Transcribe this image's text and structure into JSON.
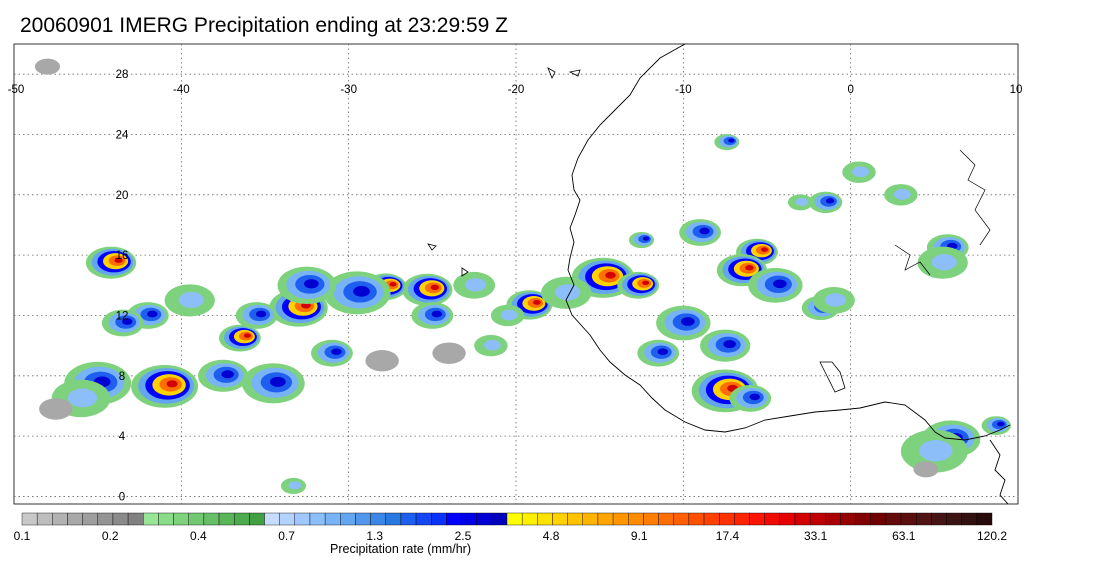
{
  "title": "20060901 IMERG Precipitation ending at 23:29:59 Z",
  "map": {
    "lon_labels": [
      "-50",
      "-40",
      "-30",
      "-20",
      "-10",
      "0",
      "10"
    ],
    "lat_labels": [
      "28",
      "24",
      "20",
      "16",
      "12",
      "8",
      "4",
      "0"
    ],
    "lon_range": [
      -50,
      10
    ],
    "lat_range": [
      -0.5,
      30
    ],
    "grid": "dotted",
    "coastline_color": "#000000"
  },
  "colorbar": {
    "title": "Precipitation rate (mm/hr)",
    "labels": [
      "0.1",
      "0.2",
      "0.4",
      "0.7",
      "1.3",
      "2.5",
      "4.8",
      "9.1",
      "17.4",
      "33.1",
      "63.1",
      "120.2"
    ],
    "colors": [
      "#c8c8c8",
      "#bdbdbd",
      "#b2b2b2",
      "#a8a8a8",
      "#9e9e9e",
      "#949494",
      "#8a8a8a",
      "#808080",
      "#96e696",
      "#8adc8a",
      "#7ed27e",
      "#72c872",
      "#66be66",
      "#5ab45a",
      "#4eaa4e",
      "#42a042",
      "#c8dcff",
      "#b4d2ff",
      "#a0c8ff",
      "#8cbefa",
      "#78b4f5",
      "#64a5f0",
      "#5096eb",
      "#3c87e6",
      "#2878e1",
      "#1e5ff0",
      "#1446f5",
      "#0a32fa",
      "#0000ff",
      "#0000e6",
      "#0000d2",
      "#0000be",
      "#ffff00",
      "#fff000",
      "#ffe100",
      "#ffd200",
      "#ffc300",
      "#ffb400",
      "#ffa500",
      "#ff9600",
      "#ff8c00",
      "#ff7d00",
      "#ff6e00",
      "#ff5f00",
      "#ff5000",
      "#ff4100",
      "#ff3200",
      "#ff2300",
      "#ff1400",
      "#f00a00",
      "#e60000",
      "#d20000",
      "#be0000",
      "#aa0000",
      "#960000",
      "#820000",
      "#6e0000",
      "#640a0a",
      "#5a0f0f",
      "#501414",
      "#461414",
      "#3c1414",
      "#321010",
      "#280a0a"
    ]
  },
  "precip_cells": [
    {
      "lon": -44.2,
      "lat": 15.5,
      "r": 1.2,
      "level": "heavy"
    },
    {
      "lon": -33.0,
      "lat": 12.5,
      "r": 1.4,
      "level": "heavy"
    },
    {
      "lon": -25.3,
      "lat": 13.7,
      "r": 1.2,
      "level": "heavy"
    },
    {
      "lon": -27.8,
      "lat": 13.9,
      "r": 1.0,
      "level": "heavy"
    },
    {
      "lon": -19.2,
      "lat": 12.7,
      "r": 1.1,
      "level": "heavy"
    },
    {
      "lon": -14.8,
      "lat": 14.5,
      "r": 1.5,
      "level": "heavy"
    },
    {
      "lon": -12.7,
      "lat": 14.0,
      "r": 1.0,
      "level": "heavy"
    },
    {
      "lon": -7.5,
      "lat": 7.0,
      "r": 1.6,
      "level": "heavy"
    },
    {
      "lon": -5.6,
      "lat": 16.2,
      "r": 1.0,
      "level": "heavy"
    },
    {
      "lon": -6.5,
      "lat": 15.0,
      "r": 1.2,
      "level": "heavy"
    },
    {
      "lon": -41.0,
      "lat": 7.3,
      "r": 1.6,
      "level": "heavy"
    },
    {
      "lon": -36.5,
      "lat": 10.5,
      "r": 1.0,
      "level": "heavy"
    },
    {
      "lon": -37.5,
      "lat": 8.0,
      "r": 1.2,
      "level": "moderate"
    },
    {
      "lon": -45.0,
      "lat": 7.5,
      "r": 1.6,
      "level": "moderate"
    },
    {
      "lon": -31.0,
      "lat": 9.5,
      "r": 1.0,
      "level": "moderate"
    },
    {
      "lon": -34.5,
      "lat": 7.5,
      "r": 1.5,
      "level": "moderate"
    },
    {
      "lon": -29.5,
      "lat": 13.5,
      "r": 1.6,
      "level": "moderate"
    },
    {
      "lon": -32.5,
      "lat": 14.0,
      "r": 1.4,
      "level": "moderate"
    },
    {
      "lon": -35.5,
      "lat": 12.0,
      "r": 1.0,
      "level": "moderate"
    },
    {
      "lon": -42.0,
      "lat": 12.0,
      "r": 1.0,
      "level": "moderate"
    },
    {
      "lon": -43.5,
      "lat": 11.5,
      "r": 1.0,
      "level": "moderate"
    },
    {
      "lon": -25.0,
      "lat": 12.0,
      "r": 1.0,
      "level": "moderate"
    },
    {
      "lon": -10.0,
      "lat": 11.5,
      "r": 1.3,
      "level": "moderate"
    },
    {
      "lon": -11.5,
      "lat": 9.5,
      "r": 1.0,
      "level": "moderate"
    },
    {
      "lon": -7.5,
      "lat": 10.0,
      "r": 1.2,
      "level": "moderate"
    },
    {
      "lon": -6.0,
      "lat": 6.5,
      "r": 1.0,
      "level": "moderate"
    },
    {
      "lon": -4.5,
      "lat": 14.0,
      "r": 1.3,
      "level": "moderate"
    },
    {
      "lon": -1.5,
      "lat": 19.5,
      "r": 0.8,
      "level": "moderate"
    },
    {
      "lon": 5.8,
      "lat": 16.5,
      "r": 1.0,
      "level": "moderate"
    },
    {
      "lon": -1.8,
      "lat": 12.5,
      "r": 0.9,
      "level": "moderate"
    },
    {
      "lon": 6.0,
      "lat": 3.8,
      "r": 1.4,
      "level": "moderate"
    },
    {
      "lon": 8.7,
      "lat": 4.7,
      "r": 0.7,
      "level": "moderate"
    },
    {
      "lon": -7.4,
      "lat": 23.5,
      "r": 0.6,
      "level": "moderate"
    },
    {
      "lon": -12.5,
      "lat": 17.0,
      "r": 0.6,
      "level": "moderate"
    },
    {
      "lon": -9.0,
      "lat": 17.5,
      "r": 1.0,
      "level": "moderate"
    },
    {
      "lon": -20.5,
      "lat": 12.0,
      "r": 0.8,
      "level": "light"
    },
    {
      "lon": -17.0,
      "lat": 13.5,
      "r": 1.2,
      "level": "light"
    },
    {
      "lon": -46.0,
      "lat": 6.5,
      "r": 1.4,
      "level": "light"
    },
    {
      "lon": -39.5,
      "lat": 13.0,
      "r": 1.2,
      "level": "light"
    },
    {
      "lon": -22.5,
      "lat": 14.0,
      "r": 1.0,
      "level": "light"
    },
    {
      "lon": -21.5,
      "lat": 10.0,
      "r": 0.8,
      "level": "light"
    },
    {
      "lon": 0.5,
      "lat": 21.5,
      "r": 0.8,
      "level": "light"
    },
    {
      "lon": 3.0,
      "lat": 20.0,
      "r": 0.8,
      "level": "light"
    },
    {
      "lon": 5.5,
      "lat": 15.5,
      "r": 1.2,
      "level": "light"
    },
    {
      "lon": 5.0,
      "lat": 3.0,
      "r": 1.6,
      "level": "light"
    },
    {
      "lon": -3.0,
      "lat": 19.5,
      "r": 0.6,
      "level": "light"
    },
    {
      "lon": -1.0,
      "lat": 13.0,
      "r": 1.0,
      "level": "light"
    },
    {
      "lon": -33.3,
      "lat": 0.7,
      "r": 0.6,
      "level": "light"
    },
    {
      "lon": -48.0,
      "lat": 28.5,
      "r": 0.6,
      "level": "trace"
    },
    {
      "lon": -28.0,
      "lat": 9.0,
      "r": 0.8,
      "level": "trace"
    },
    {
      "lon": -24.0,
      "lat": 9.5,
      "r": 0.8,
      "level": "trace"
    },
    {
      "lon": -47.5,
      "lat": 5.8,
      "r": 0.8,
      "level": "trace"
    },
    {
      "lon": 4.5,
      "lat": 1.8,
      "r": 0.6,
      "level": "trace"
    }
  ]
}
